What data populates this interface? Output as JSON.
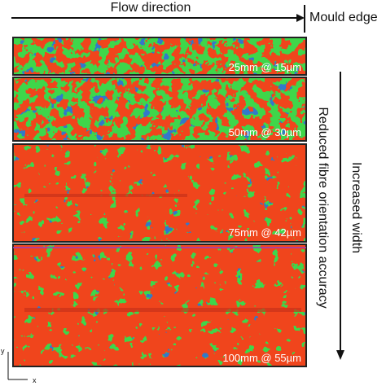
{
  "header": {
    "flow": "Flow direction",
    "edge": "Mould edge"
  },
  "panels": [
    {
      "label": "25mm @ 15µm"
    },
    {
      "label": "50mm @ 30µm"
    },
    {
      "label": "75mm @ 42µm"
    },
    {
      "label": "100mm @ 55µm"
    }
  ],
  "side": {
    "accuracy": "Reduced fibre orientation accuracy",
    "width": "Increased width"
  },
  "axes": {
    "y": "y",
    "x": "x"
  }
}
